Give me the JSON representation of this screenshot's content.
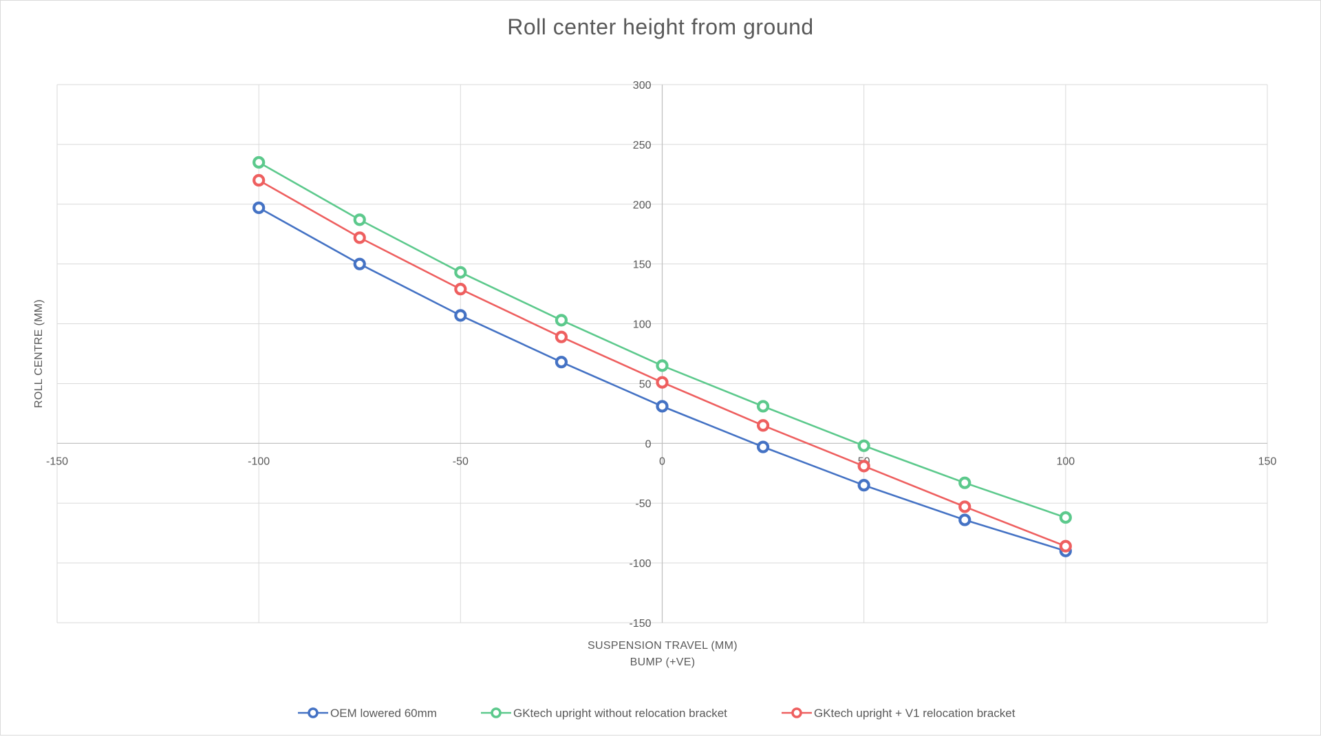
{
  "chart_data": {
    "type": "scatter",
    "title": "Roll center height from ground",
    "xlabel": "SUSPENSION TRAVEL (MM)",
    "xlabel_sub": "BUMP (+VE)",
    "ylabel": "ROLL CENTRE (MM)",
    "xlim": [
      -150,
      150
    ],
    "ylim": [
      -150,
      300
    ],
    "x_ticks": [
      -150,
      -100,
      -50,
      0,
      50,
      100,
      150
    ],
    "y_ticks": [
      -150,
      -100,
      -50,
      0,
      50,
      100,
      150,
      200,
      250,
      300
    ],
    "grid": true,
    "legend_position": "bottom",
    "series": [
      {
        "name": "OEM lowered 60mm",
        "color": "#4472C4",
        "x": [
          -100,
          -75,
          -50,
          -25,
          0,
          25,
          50,
          75,
          100
        ],
        "y": [
          197,
          150,
          107,
          68,
          31,
          -3,
          -35,
          -64,
          -90
        ]
      },
      {
        "name": "GKtech upright without relocation bracket",
        "color": "#5CC98C",
        "x": [
          -100,
          -75,
          -50,
          -25,
          0,
          25,
          50,
          75,
          100
        ],
        "y": [
          235,
          187,
          143,
          103,
          65,
          31,
          -2,
          -33,
          -62
        ]
      },
      {
        "name": "GKtech upright + V1 relocation bracket",
        "color": "#EE5F5F",
        "x": [
          -100,
          -75,
          -50,
          -25,
          0,
          25,
          50,
          75,
          100
        ],
        "y": [
          220,
          172,
          129,
          89,
          51,
          15,
          -19,
          -53,
          -86
        ]
      }
    ]
  }
}
